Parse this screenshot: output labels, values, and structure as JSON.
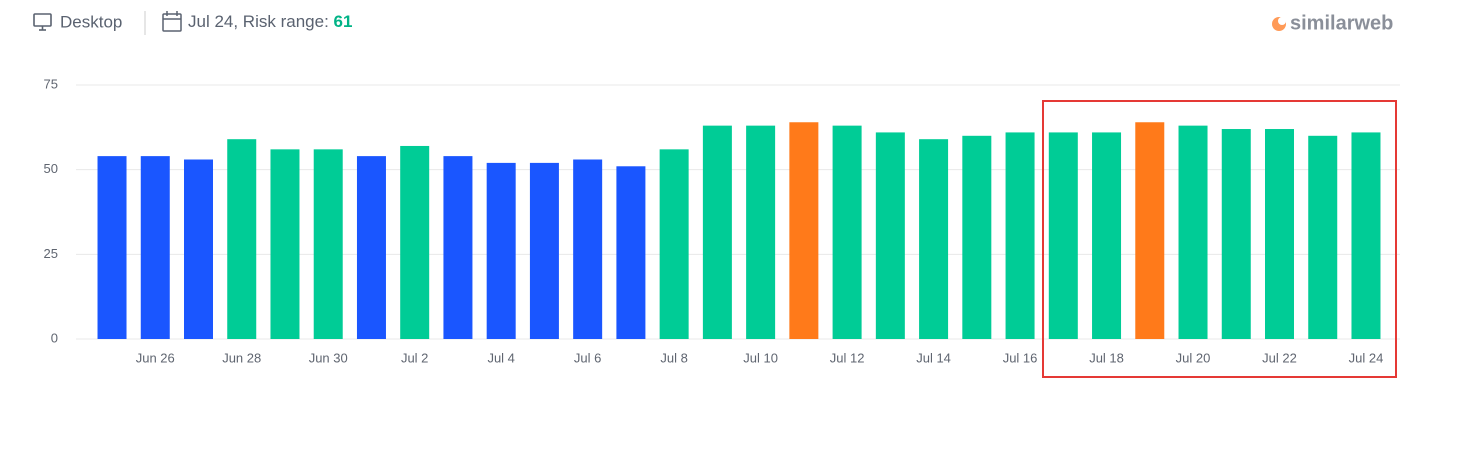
{
  "header": {
    "device": "Desktop",
    "date_label": "Jul 24, Risk range:",
    "risk_value": "61",
    "brand": "similarweb"
  },
  "chart_data": {
    "type": "bar",
    "categories": [
      null,
      "Jun 26",
      null,
      "Jun 28",
      null,
      "Jun 30",
      null,
      "Jul 2",
      null,
      "Jul 4",
      null,
      "Jul 6",
      null,
      "Jul 8",
      null,
      "Jul 10",
      null,
      "Jul 12",
      null,
      "Jul 14",
      null,
      "Jul 16",
      null,
      "Jul 18",
      null,
      "Jul 20",
      null,
      "Jul 22",
      null,
      "Jul 24"
    ],
    "values": [
      54,
      54,
      53,
      59,
      56,
      56,
      54,
      57,
      54,
      52,
      52,
      53,
      51,
      56,
      63,
      63,
      64,
      63,
      61,
      59,
      60,
      61,
      61,
      61,
      64,
      63,
      62,
      62,
      60,
      61
    ],
    "colors": [
      "#1a56ff",
      "#1a56ff",
      "#1a56ff",
      "#00cc96",
      "#00cc96",
      "#00cc96",
      "#1a56ff",
      "#00cc96",
      "#1a56ff",
      "#1a56ff",
      "#1a56ff",
      "#1a56ff",
      "#1a56ff",
      "#00cc96",
      "#00cc96",
      "#00cc96",
      "#ff7a1a",
      "#00cc96",
      "#00cc96",
      "#00cc96",
      "#00cc96",
      "#00cc96",
      "#00cc96",
      "#00cc96",
      "#ff7a1a",
      "#00cc96",
      "#00cc96",
      "#00cc96",
      "#00cc96",
      "#00cc96"
    ],
    "ylim": [
      0,
      75
    ],
    "yticks": [
      0,
      25,
      50,
      75
    ],
    "grid": true
  }
}
